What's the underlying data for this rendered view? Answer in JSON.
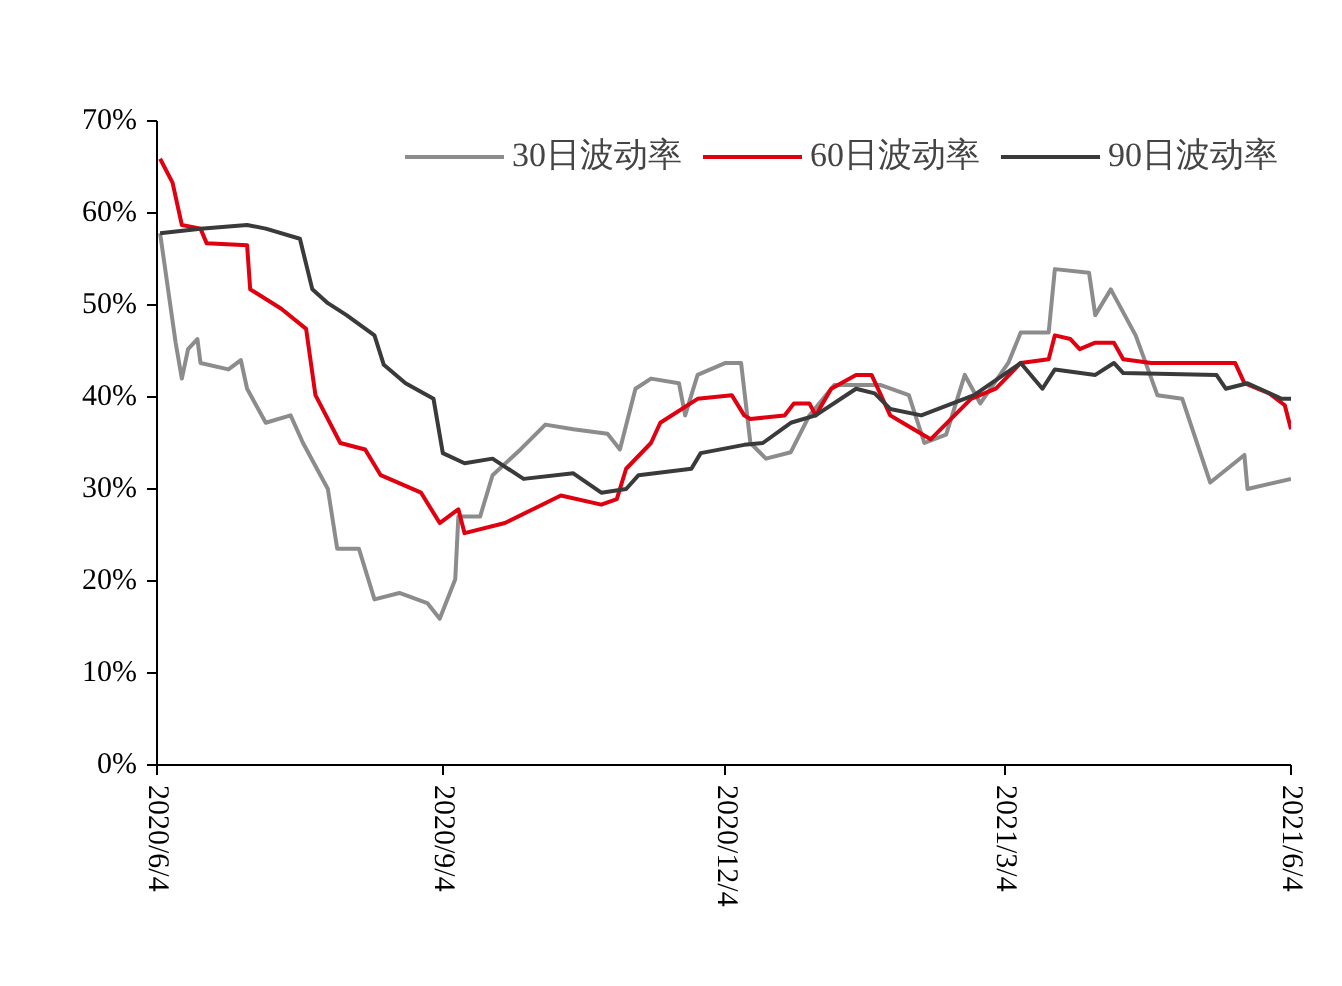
{
  "chart_data": {
    "type": "line",
    "xlim": [
      "2020-06-04",
      "2021-06-04"
    ],
    "xticks": [
      {
        "value": "2020-06-04",
        "label": "2020/6/4"
      },
      {
        "value": "2020-09-04",
        "label": "2020/9/4"
      },
      {
        "value": "2020-12-04",
        "label": "2020/12/4"
      },
      {
        "value": "2021-03-04",
        "label": "2021/3/4"
      },
      {
        "value": "2021-06-04",
        "label": "2021/6/4"
      }
    ],
    "ylim": [
      0,
      70
    ],
    "yticks": [
      {
        "value": 0,
        "label": "0%"
      },
      {
        "value": 10,
        "label": "10%"
      },
      {
        "value": 20,
        "label": "20%"
      },
      {
        "value": 30,
        "label": "30%"
      },
      {
        "value": 40,
        "label": "40%"
      },
      {
        "value": 50,
        "label": "50%"
      },
      {
        "value": 60,
        "label": "60%"
      },
      {
        "value": 70,
        "label": "70%"
      }
    ],
    "grid": false,
    "legend": "top",
    "line_style": "solid",
    "series": [
      {
        "name": "30日波动率",
        "color": "#8c8c8c",
        "x": [
          "2020-06-05",
          "2020-06-10",
          "2020-06-12",
          "2020-06-14",
          "2020-06-17",
          "2020-06-18",
          "2020-06-27",
          "2020-07-01",
          "2020-07-03",
          "2020-07-09",
          "2020-07-17",
          "2020-07-21",
          "2020-07-29",
          "2020-08-01",
          "2020-08-08",
          "2020-08-13",
          "2020-08-21",
          "2020-08-30",
          "2020-09-03",
          "2020-09-08",
          "2020-09-09",
          "2020-09-16",
          "2020-09-20",
          "2020-09-29",
          "2020-10-07",
          "2020-10-16",
          "2020-10-27",
          "2020-10-31",
          "2020-11-05",
          "2020-11-10",
          "2020-11-19",
          "2020-11-21",
          "2020-11-25",
          "2020-12-04",
          "2020-12-09",
          "2020-12-12",
          "2020-12-17",
          "2020-12-25",
          "2020-12-31",
          "2021-01-08",
          "2021-01-23",
          "2021-02-01",
          "2021-02-06",
          "2021-02-13",
          "2021-02-19",
          "2021-02-24",
          "2021-03-05",
          "2021-03-09",
          "2021-03-18",
          "2021-03-20",
          "2021-03-31",
          "2021-04-02",
          "2021-04-07",
          "2021-04-15",
          "2021-04-22",
          "2021-04-30",
          "2021-05-09",
          "2021-05-20",
          "2021-05-21",
          "2021-06-04"
        ],
        "values": [
          57.8,
          45.9,
          42,
          45.2,
          46.3,
          43.7,
          43,
          44,
          40.9,
          37.2,
          38,
          35,
          30,
          23.5,
          23.5,
          18,
          18.7,
          17.6,
          15.9,
          20.2,
          27,
          27,
          31.5,
          34.3,
          37,
          36.5,
          36,
          34.3,
          40.9,
          42,
          41.5,
          38,
          42.4,
          43.7,
          43.7,
          35,
          33.3,
          34,
          38,
          41.3,
          41.3,
          40.2,
          35,
          35.9,
          42.4,
          39.3,
          43.7,
          47,
          47,
          53.9,
          53.5,
          48.9,
          51.7,
          46.7,
          40.2,
          39.8,
          30.7,
          33.7,
          30,
          31.1
        ]
      },
      {
        "name": "60日波动率",
        "color": "#e0000f",
        "x": [
          "2020-06-05",
          "2020-06-09",
          "2020-06-12",
          "2020-06-18",
          "2020-06-20",
          "2020-07-03",
          "2020-07-04",
          "2020-07-14",
          "2020-07-22",
          "2020-07-25",
          "2020-08-02",
          "2020-08-10",
          "2020-08-15",
          "2020-08-28",
          "2020-09-03",
          "2020-09-09",
          "2020-09-11",
          "2020-09-24",
          "2020-10-03",
          "2020-10-12",
          "2020-10-25",
          "2020-10-30",
          "2020-11-02",
          "2020-11-10",
          "2020-11-13",
          "2020-11-25",
          "2020-12-06",
          "2020-12-10",
          "2020-12-12",
          "2020-12-23",
          "2020-12-26",
          "2020-12-31",
          "2021-01-02",
          "2021-01-07",
          "2021-01-15",
          "2021-01-20",
          "2021-01-26",
          "2021-01-30",
          "2021-02-08",
          "2021-02-21",
          "2021-03-01",
          "2021-03-09",
          "2021-03-18",
          "2021-03-20",
          "2021-03-25",
          "2021-03-28",
          "2021-04-02",
          "2021-04-08",
          "2021-04-11",
          "2021-04-20",
          "2021-05-17",
          "2021-05-20",
          "2021-05-28",
          "2021-06-02",
          "2021-06-04"
        ],
        "values": [
          65.9,
          63.3,
          58.7,
          58.3,
          56.7,
          56.5,
          51.7,
          49.6,
          47.4,
          40.2,
          35,
          34.3,
          31.5,
          29.6,
          26.3,
          27.8,
          25.2,
          26.3,
          27.8,
          29.3,
          28.3,
          28.9,
          32.2,
          35,
          37.2,
          39.8,
          40.2,
          38,
          37.6,
          38,
          39.3,
          39.3,
          38,
          40.9,
          42.4,
          42.4,
          38,
          37.2,
          35.4,
          39.8,
          40.9,
          43.7,
          44.1,
          46.7,
          46.3,
          45.2,
          45.9,
          45.9,
          44.1,
          43.7,
          43.7,
          41.5,
          40.4,
          39.1,
          36.5
        ]
      },
      {
        "name": "90日波动率",
        "color": "#3a3a3a",
        "x": [
          "2020-06-05",
          "2020-06-18",
          "2020-07-03",
          "2020-07-09",
          "2020-07-20",
          "2020-07-24",
          "2020-07-29",
          "2020-08-04",
          "2020-08-13",
          "2020-08-16",
          "2020-08-23",
          "2020-09-01",
          "2020-09-04",
          "2020-09-11",
          "2020-09-20",
          "2020-09-30",
          "2020-10-16",
          "2020-10-25",
          "2020-11-02",
          "2020-11-06",
          "2020-11-23",
          "2020-11-26",
          "2020-12-10",
          "2020-12-16",
          "2020-12-25",
          "2021-01-02",
          "2021-01-15",
          "2021-01-21",
          "2021-01-26",
          "2021-02-05",
          "2021-02-22",
          "2021-03-09",
          "2021-03-16",
          "2021-03-20",
          "2021-04-02",
          "2021-04-08",
          "2021-04-11",
          "2021-05-11",
          "2021-05-14",
          "2021-05-21",
          "2021-06-01",
          "2021-06-04"
        ],
        "values": [
          57.8,
          58.3,
          58.7,
          58.3,
          57.2,
          51.7,
          50.2,
          48.9,
          46.7,
          43.5,
          41.5,
          39.8,
          33.9,
          32.8,
          33.3,
          31.1,
          31.7,
          29.6,
          30,
          31.5,
          32.2,
          33.9,
          34.8,
          35,
          37.2,
          38,
          40.9,
          40.4,
          38.7,
          38,
          40.2,
          43.7,
          40.9,
          43,
          42.4,
          43.7,
          42.6,
          42.4,
          40.9,
          41.5,
          39.8,
          39.8
        ]
      }
    ]
  }
}
